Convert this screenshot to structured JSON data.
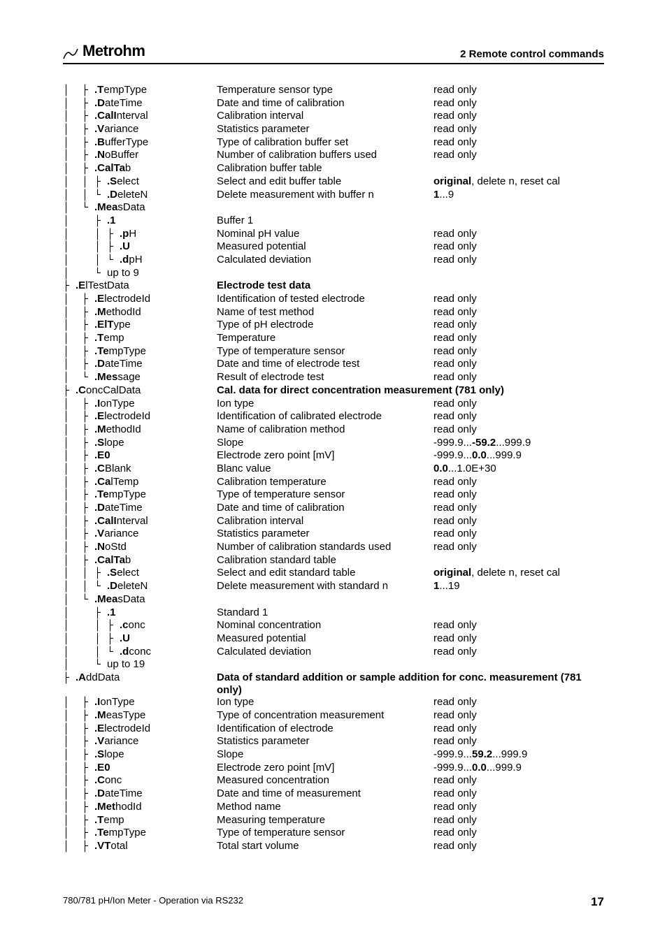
{
  "header": {
    "brand": "Metrohm",
    "section": "2 Remote control commands"
  },
  "footer": {
    "left": "780/781 pH/Ion Meter  -  Operation via RS232",
    "page": "17"
  },
  "rows": [
    {
      "tree": "│  ├ ",
      "hk": ".T",
      "rest": "empType",
      "desc": "Temperature sensor type",
      "val": "read only"
    },
    {
      "tree": "│  ├ ",
      "hk": ".D",
      "rest": "ateTime",
      "desc": "Date and time of calibration",
      "val": "read only"
    },
    {
      "tree": "│  ├ ",
      "hk": ".CalI",
      "rest": "nterval",
      "desc": "Calibration interval",
      "val": "read only"
    },
    {
      "tree": "│  ├ ",
      "hk": ".V",
      "rest": "ariance",
      "desc": "Statistics parameter",
      "val": "read only"
    },
    {
      "tree": "│  ├ ",
      "hk": ".B",
      "rest": "ufferType",
      "desc": "Type of calibration buffer set",
      "val": "read only"
    },
    {
      "tree": "│  ├ ",
      "hk": ".N",
      "rest": "oBuffer",
      "desc": "Number of calibration buffers used",
      "val": "read only"
    },
    {
      "tree": "│  ├ ",
      "hk": ".CalTa",
      "rest": "b",
      "desc": "Calibration buffer table",
      "val": ""
    },
    {
      "tree": "│  │ ├ ",
      "hk": ".S",
      "rest": "elect",
      "desc": "Select and edit buffer table",
      "val_html": "<span class='b'>original</span>, delete n, reset cal"
    },
    {
      "tree": "│  │ └ ",
      "hk": ".D",
      "rest": "eleteN",
      "desc": "Delete measurement with buffer n",
      "val_html": "<span class='b'>1</span>...9"
    },
    {
      "tree": "│  └ ",
      "hk": ".Mea",
      "rest": "sData",
      "desc": "",
      "val": ""
    },
    {
      "tree": "│    ├ ",
      "hk": ".1",
      "rest": "",
      "desc": "Buffer 1",
      "val": ""
    },
    {
      "tree": "│    │ ├ ",
      "hk": ".p",
      "rest": "H",
      "desc": "Nominal pH value",
      "val": "read only"
    },
    {
      "tree": "│    │ ├ ",
      "hk": ".U",
      "rest": "",
      "desc": "Measured potential",
      "val": "read only"
    },
    {
      "tree": "│    │ └ ",
      "hk": ".d",
      "rest": "pH",
      "desc": "Calculated deviation",
      "val": "read only"
    },
    {
      "tree": "│    └ ",
      "hk": "",
      "rest": "up to 9",
      "desc": "",
      "val": ""
    },
    {
      "tree": "├ ",
      "hk": ".E",
      "rest": "lTestData",
      "desc_html": "<span class='b'>Electrode test data</span>",
      "val": ""
    },
    {
      "tree": "│  ├ ",
      "hk": ".E",
      "rest": "lectrodeId",
      "desc": "Identification of tested electrode",
      "val": "read only"
    },
    {
      "tree": "│  ├ ",
      "hk": ".M",
      "rest": "ethodId",
      "desc": "Name of test method",
      "val": "read only"
    },
    {
      "tree": "│  ├ ",
      "hk": ".ElT",
      "rest": "ype",
      "desc": "Type of pH electrode",
      "val": "read only"
    },
    {
      "tree": "│  ├ ",
      "hk": ".T",
      "rest": "emp",
      "desc": "Temperature",
      "val": "read only"
    },
    {
      "tree": "│  ├ ",
      "hk": ".Te",
      "rest": "mpType",
      "desc": "Type of temperature sensor",
      "val": "read only"
    },
    {
      "tree": "│  ├ ",
      "hk": ".D",
      "rest": "ateTime",
      "desc": "Date and time of electrode test",
      "val": "read only"
    },
    {
      "tree": "│  └ ",
      "hk": ".Mes",
      "rest": "sage",
      "desc": "Result of electrode test",
      "val": "read only"
    },
    {
      "tree": "├ ",
      "hk": ".C",
      "rest": "oncCalData",
      "desc_html": "<span class='b'>Cal. data for direct concentration measurement (781 only)</span>",
      "val": ""
    },
    {
      "tree": "│  ├ ",
      "hk": ".I",
      "rest": "onType",
      "desc": "Ion type",
      "val": "read only"
    },
    {
      "tree": "│  ├ ",
      "hk": ".E",
      "rest": "lectrodeId",
      "desc": "Identification of calibrated electrode",
      "val": "read only"
    },
    {
      "tree": "│  ├ ",
      "hk": ".M",
      "rest": "ethodId",
      "desc": "Name of calibration method",
      "val": "read only"
    },
    {
      "tree": "│  ├ ",
      "hk": ".S",
      "rest": "lope",
      "desc": "Slope",
      "val_html": "-999.9...<span class='b'>-59.2</span>...999.9"
    },
    {
      "tree": "│  ├ ",
      "hk": ".E0",
      "rest": "",
      "desc": "Electrode zero point [mV]",
      "val_html": "-999.9...<span class='b'>0.0</span>...999.9"
    },
    {
      "tree": "│  ├ ",
      "hk": ".C",
      "rest": "Blank",
      "desc": "Blanc value",
      "val_html": "<span class='b'>0.0</span>...1.0E+30"
    },
    {
      "tree": "│  ├ ",
      "hk": ".Ca",
      "rest": "lTemp",
      "desc": "Calibration temperature",
      "val": "read only"
    },
    {
      "tree": "│  ├ ",
      "hk": ".Te",
      "rest": "mpType",
      "desc": "Type of temperature sensor",
      "val": "read only"
    },
    {
      "tree": "│  ├ ",
      "hk": ".D",
      "rest": "ateTime",
      "desc": "Date and time of calibration",
      "val": "read only"
    },
    {
      "tree": "│  ├ ",
      "hk": ".CalI",
      "rest": "nterval",
      "desc": "Calibration interval",
      "val": "read only"
    },
    {
      "tree": "│  ├ ",
      "hk": ".V",
      "rest": "ariance",
      "desc": "Statistics parameter",
      "val": "read only"
    },
    {
      "tree": "│  ├ ",
      "hk": ".N",
      "rest": "oStd",
      "desc": "Number of calibration standards used",
      "val": "read only"
    },
    {
      "tree": "│  ├ ",
      "hk": ".CalTa",
      "rest": "b",
      "desc": "Calibration standard table",
      "val": ""
    },
    {
      "tree": "│  │ ├ ",
      "hk": ".S",
      "rest": "elect",
      "desc": "Select and edit standard table",
      "val_html": "<span class='b'>original</span>, delete n, reset cal"
    },
    {
      "tree": "│  │ └ ",
      "hk": ".D",
      "rest": "eleteN",
      "desc": "Delete measurement with standard n",
      "val_html": "<span class='b'>1</span>...19"
    },
    {
      "tree": "│  └ ",
      "hk": ".Mea",
      "rest": "sData",
      "desc": "",
      "val": ""
    },
    {
      "tree": "│    ├ ",
      "hk": ".1",
      "rest": "",
      "desc": "Standard 1",
      "val": ""
    },
    {
      "tree": "│    │ ├ ",
      "hk": ".c",
      "rest": "onc",
      "desc": "Nominal concentration",
      "val": "read only"
    },
    {
      "tree": "│    │ ├ ",
      "hk": ".U",
      "rest": "",
      "desc": "Measured potential",
      "val": "read only"
    },
    {
      "tree": "│    │ └ ",
      "hk": ".d",
      "rest": "conc",
      "desc": "Calculated deviation",
      "val": "read only"
    },
    {
      "tree": "│    └ ",
      "hk": "",
      "rest": "up to 19",
      "desc": "",
      "val": ""
    },
    {
      "tree": "├ ",
      "hk": ".A",
      "rest": "ddData",
      "desc_html": "<span class='b'>Data of standard addition or sample addition for conc. measurement (781 only)</span>",
      "val": ""
    },
    {
      "tree": "│  ├ ",
      "hk": ".I",
      "rest": "onType",
      "desc": "Ion type",
      "val": "read only"
    },
    {
      "tree": "│  ├ ",
      "hk": ".M",
      "rest": "easType",
      "desc": "Type of concentration measurement",
      "val": "read only"
    },
    {
      "tree": "│  ├ ",
      "hk": ".E",
      "rest": "lectrodeId",
      "desc": "Identification of electrode",
      "val": "read only"
    },
    {
      "tree": "│  ├ ",
      "hk": ".V",
      "rest": "ariance",
      "desc": "Statistics parameter",
      "val": "read only"
    },
    {
      "tree": "│  ├ ",
      "hk": ".S",
      "rest": "lope",
      "desc": "Slope",
      "val_html": "-999.9...<span class='b'>59.2</span>...999.9"
    },
    {
      "tree": "│  ├ ",
      "hk": ".E0",
      "rest": "",
      "desc": "Electrode zero point [mV]",
      "val_html": "-999.9...<span class='b'>0.0</span>...999.9"
    },
    {
      "tree": "│  ├ ",
      "hk": ".C",
      "rest": "onc",
      "desc": "Measured concentration",
      "val": "read only"
    },
    {
      "tree": "│  ├ ",
      "hk": ".D",
      "rest": "ateTime",
      "desc": "Date and time of measurement",
      "val": "read only"
    },
    {
      "tree": "│  ├ ",
      "hk": ".Met",
      "rest": "hodId",
      "desc": "Method name",
      "val": "read only"
    },
    {
      "tree": "│  ├ ",
      "hk": ".T",
      "rest": "emp",
      "desc": "Measuring temperature",
      "val": "read only"
    },
    {
      "tree": "│  ├ ",
      "hk": ".Te",
      "rest": "mpType",
      "desc": "Type of temperature sensor",
      "val": "read only"
    },
    {
      "tree": "│  ├ ",
      "hk": ".VT",
      "rest": "otal",
      "desc": "Total start volume",
      "val": "read only"
    }
  ]
}
